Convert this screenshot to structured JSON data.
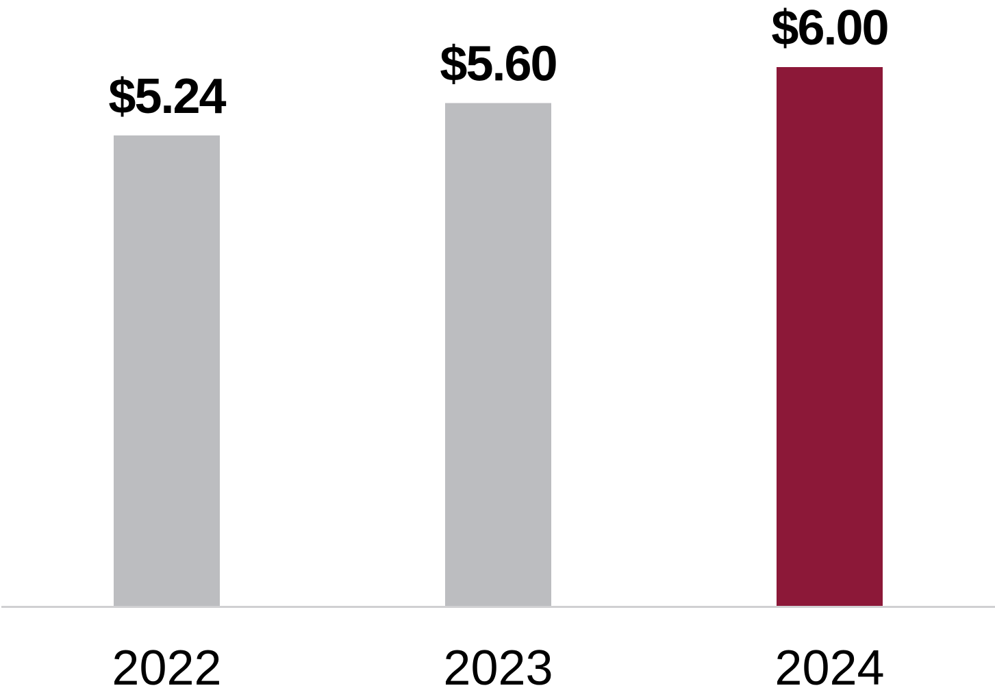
{
  "chart_data": {
    "type": "bar",
    "categories": [
      "2022",
      "2023",
      "2024"
    ],
    "values": [
      5.24,
      5.6,
      6.0
    ],
    "value_labels": [
      "$5.24",
      "$5.60",
      "$6.00"
    ],
    "title": "",
    "xlabel": "",
    "ylabel": "",
    "ylim": [
      0,
      6.0
    ],
    "grid": false,
    "colors": [
      "#bcbdc0",
      "#bcbdc0",
      "#8c1838"
    ],
    "axis_color": "#d0d0d2"
  }
}
